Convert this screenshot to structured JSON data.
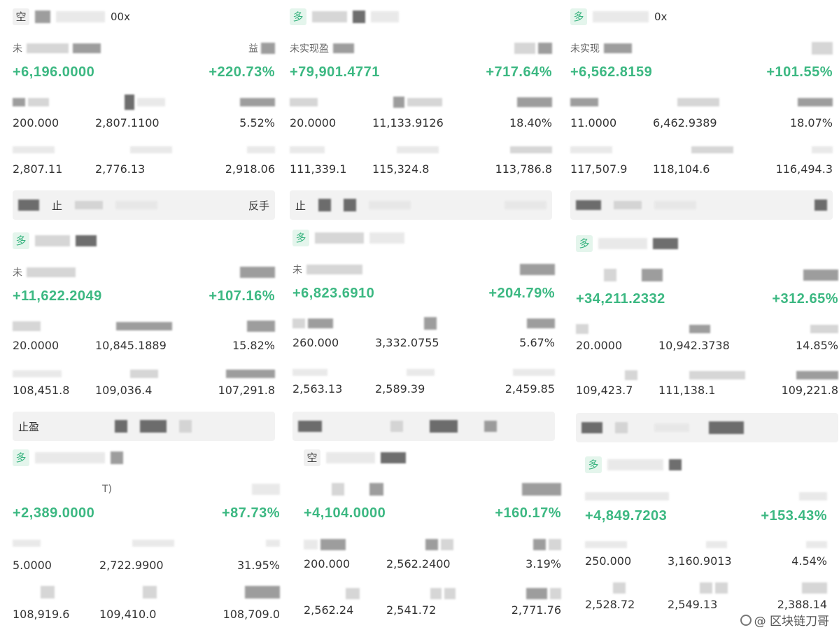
{
  "watermark": {
    "text": "@ 区块链刀哥"
  },
  "positions": [
    {
      "side": "空",
      "header_suffix": "00x",
      "sub_label": "未",
      "sub_label_right": "益",
      "pnl": "+6,196.0000",
      "roi": "+220.73%",
      "values1": [
        "200.000",
        "2,807.1100",
        "5.52%"
      ],
      "values2": [
        "2,807.11",
        "2,776.13",
        "2,918.06"
      ],
      "action_left": "止",
      "action_right": "反手"
    },
    {
      "side": "多",
      "header_suffix": "",
      "sub_label": "未实现盈",
      "sub_label_right": "",
      "pnl": "+79,901.4771",
      "roi": "+717.64%",
      "values1": [
        "20.0000",
        "11,133.9126",
        "18.40%"
      ],
      "values2": [
        "111,339.1",
        "115,324.8",
        "113,786.8"
      ],
      "action_left": "止",
      "action_right": ""
    },
    {
      "side": "多",
      "header_suffix": "0x",
      "sub_label": "未实现",
      "sub_label_right": "",
      "pnl": "+6,562.8159",
      "roi": "+101.55%",
      "values1": [
        "11.0000",
        "6,462.9389",
        "18.07%"
      ],
      "values2": [
        "117,507.9",
        "118,104.6",
        "116,494.3"
      ],
      "action_left": "",
      "action_right": ""
    },
    {
      "side": "多",
      "header_suffix": "",
      "sub_label": "未",
      "sub_label_right": "",
      "pnl": "+11,622.2049",
      "roi": "+107.16%",
      "values1": [
        "20.0000",
        "10,845.1889",
        "15.82%"
      ],
      "values2": [
        "108,451.8",
        "109,036.4",
        "107,291.8"
      ],
      "action_left": "止盈",
      "action_right": ""
    },
    {
      "side": "多",
      "header_suffix": "",
      "sub_label": "未",
      "sub_label_right": "",
      "pnl": "+6,823.6910",
      "roi": "+204.79%",
      "values1": [
        "260.000",
        "3,332.0755",
        "5.67%"
      ],
      "values2": [
        "2,563.13",
        "2,589.39",
        "2,459.85"
      ],
      "action_left": "",
      "action_right": ""
    },
    {
      "side": "多",
      "header_suffix": "",
      "sub_label": "",
      "sub_label_right": "",
      "pnl": "+34,211.2332",
      "roi": "+312.65%",
      "values1": [
        "20.0000",
        "10,942.3738",
        "14.85%"
      ],
      "values2": [
        "109,423.7",
        "111,138.1",
        "109,221.8"
      ],
      "action_left": "",
      "action_right": ""
    },
    {
      "side": "多",
      "header_suffix": "",
      "sub_label": "T)",
      "sub_label_right": "",
      "pnl": "+2,389.0000",
      "roi": "+87.73%",
      "values1": [
        "5.0000",
        "2,722.9900",
        "31.95%"
      ],
      "values2": [
        "108,919.6",
        "109,410.0",
        "108,709.0"
      ],
      "action_left": "",
      "action_right": ""
    },
    {
      "side": "空",
      "header_suffix": "",
      "sub_label": "",
      "sub_label_right": "",
      "pnl": "+4,104.0000",
      "roi": "+160.17%",
      "values1": [
        "200.000",
        "2,562.2400",
        "3.19%"
      ],
      "values2": [
        "2,562.24",
        "2,541.72",
        "2,771.76"
      ],
      "action_left": "",
      "action_right": ""
    },
    {
      "side": "多",
      "header_suffix": "",
      "sub_label": "",
      "sub_label_right": "",
      "pnl": "+4,849.7203",
      "roi": "+153.43%",
      "values1": [
        "250.000",
        "3,160.9013",
        "4.54%"
      ],
      "values2": [
        "2,528.72",
        "2,549.13",
        "2,388.14"
      ],
      "action_left": "",
      "action_right": ""
    }
  ]
}
